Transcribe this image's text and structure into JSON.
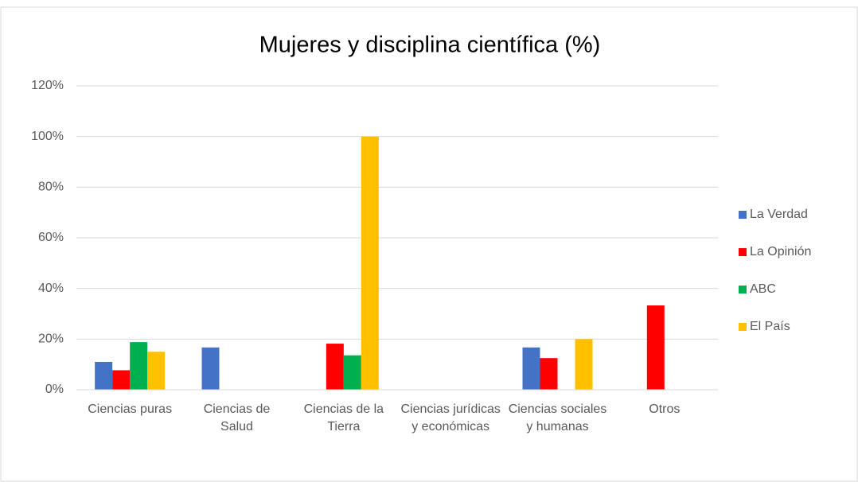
{
  "chart_data": {
    "type": "bar",
    "title": "Mujeres y disciplina científica (%)",
    "categories": [
      "Ciencias puras",
      "Ciencias de Salud",
      "Ciencias de la Tierra",
      "Ciencias jurídicas y económicas",
      "Ciencias sociales y humanas",
      "Otros"
    ],
    "series": [
      {
        "name": "La Verdad",
        "color": "#4472c4",
        "values": [
          11,
          16.7,
          0,
          0,
          16.7,
          0
        ]
      },
      {
        "name": "La Opinión",
        "color": "#ff0000",
        "values": [
          7.7,
          0,
          18.2,
          0,
          12.5,
          33.3
        ]
      },
      {
        "name": "ABC",
        "color": "#00b050",
        "values": [
          18.8,
          0,
          13.6,
          0,
          0,
          0
        ]
      },
      {
        "name": "El País",
        "color": "#ffc000",
        "values": [
          15,
          0,
          100,
          0,
          20,
          0
        ]
      }
    ],
    "ylim": [
      0,
      120
    ],
    "yticks": [
      {
        "value": 0,
        "label": "0%"
      },
      {
        "value": 20,
        "label": "20%"
      },
      {
        "value": 40,
        "label": "40%"
      },
      {
        "value": 60,
        "label": "60%"
      },
      {
        "value": 80,
        "label": "80%"
      },
      {
        "value": 100,
        "label": "100%"
      },
      {
        "value": 120,
        "label": "120%"
      }
    ],
    "grid": true,
    "legend": "right"
  }
}
